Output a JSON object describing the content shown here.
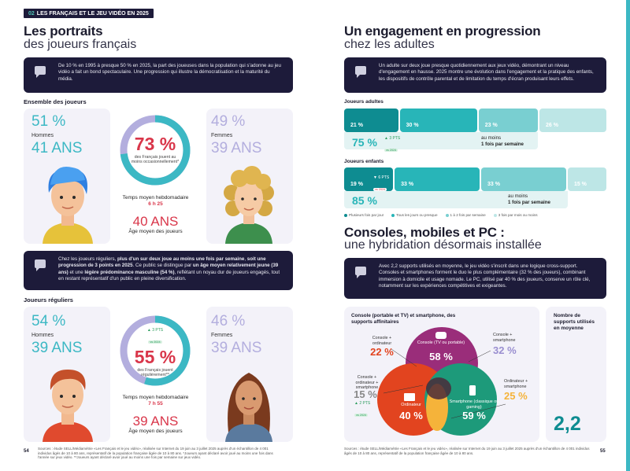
{
  "header": {
    "tag_num": "02",
    "tag_text": "LES FRANÇAIS ET LE JEU VIDÉO EN 2025"
  },
  "left": {
    "title_bold": "Les portraits",
    "title_light": "des joueurs français",
    "intro": "De 10 % en 1995 à presque 50 % en 2025, la part des joueuses dans la population qui s'adonne au jeu vidéo a fait un bond spectaculaire. Une progression qui illustre la démocratisation et la maturité du média.",
    "all": {
      "label": "Ensemble des joueurs",
      "men_pct": "51 %",
      "men_label": "Hommes",
      "men_age": "41 ANS",
      "women_pct": "49 %",
      "women_label": "Femmes",
      "women_age": "39 ANS",
      "donut_value": 73,
      "donut_pct": "73 %",
      "donut_sub": "des Français jouent au moins occasionnellement*",
      "time_label": "Temps moyen hebdomadaire",
      "time_value": "6 h 25",
      "avg_age": "40 ANS",
      "avg_age_label": "Âge moyen des joueurs"
    },
    "middle_note_html": "Chez les joueurs réguliers, <b>plus d'un sur deux joue au moins une fois par semaine</b>, <b>soit une progression de 3 points en 2025</b>. Ce public se distingue par <b>un âge moyen relativement jeune (39 ans)</b> et une <b>légère prédominance masculine (54 %)</b>, reflétant un noyau dur de joueurs engagés, tout en restant représentatif d'un public en pleine diversification.",
    "regular": {
      "label": "Joueurs réguliers",
      "men_pct": "54 %",
      "men_label": "Hommes",
      "men_age": "39 ANS",
      "women_pct": "46 %",
      "women_label": "Femmes",
      "women_age": "39 ANS",
      "delta": "▲ 3 PTS",
      "delta_tag": "vs 2024",
      "donut_value": 55,
      "donut_pct": "55 %",
      "donut_sub": "des Français jouent régulièrement**",
      "time_label": "Temps moyen hebdomadaire",
      "time_value": "7 h 55",
      "avg_age": "39 ANS",
      "avg_age_label": "Âge moyen des joueurs"
    },
    "page_num": "54",
    "footer": "Sources : étude SELL/Médiamétrie «Les Français et le jeu vidéo», réalisée sur Internet du 19 juin au 3 juillet 2025 auprès d'un échantillon de 4 001 individus âgés de 10 à 80 ans, représentatif de la population française âgée de 10 à 80 ans. *Joueurs ayant déclaré avoir joué au moins une fois dans l'année sur jeux vidéo. **Joueurs ayant déclaré avoir joué au moins une fois par semaine sur jeux vidéo."
  },
  "right": {
    "title_bold": "Un engagement en progression",
    "title_light": "chez les adultes",
    "intro": "Un adulte sur deux joue presque quotidiennement aux jeux vidéo, démontrant un niveau d'engagement en hausse. 2025 montre une évolution dans l'engagement et la pratique des enfants, les dispositifs de contrôle parental et de limitation du temps d'écran produisant leurs effets.",
    "adults": {
      "label": "Joueurs adultes",
      "segments": [
        {
          "label": "21 %",
          "value": 21
        },
        {
          "label": "30 %",
          "value": 30
        },
        {
          "label": "23 %",
          "value": 23
        },
        {
          "label": "26 %",
          "value": 26
        }
      ],
      "total": "75 %",
      "delta": "▲ 3 PTS",
      "delta_tag": "vs 2024",
      "caption_1": "au moins",
      "caption_2": "1 fois par semaine"
    },
    "kids": {
      "label": "Joueurs enfants",
      "segments": [
        {
          "label": "19 %",
          "value": 19
        },
        {
          "label": "33 %",
          "value": 33
        },
        {
          "label": "33 %",
          "value": 33
        },
        {
          "label": "15 %",
          "value": 15
        }
      ],
      "total": "85 %",
      "delta": "▼ 6 PTS",
      "delta_tag": "vs 2024",
      "caption_1": "au moins",
      "caption_2": "1 fois par semaine"
    },
    "legend": [
      {
        "label": "Plusieurs fois par jour",
        "color": "#0e8c91"
      },
      {
        "label": "Tous les jours ou presque",
        "color": "#28b5b8"
      },
      {
        "label": "1 à 2 fois par semaine",
        "color": "#79cfd1"
      },
      {
        "label": "3 fois par mois ou moins",
        "color": "#bde6e6"
      }
    ],
    "title2_bold": "Consoles, mobiles et PC :",
    "title2_light": "une hybridation désormais installée",
    "intro2": "Avec 2,2 supports utilisés en moyenne, le jeu vidéo s'inscrit dans une logique cross-support. Consoles et smartphones forment le duo le plus complémentaire (32 % des joueurs), combinant immersion à domicile et usage nomade. Le PC, utilisé par 40 % des joueurs, conserve un rôle clé, notamment sur les expériences compétitives et exigeantes.",
    "venn": {
      "title": "Console (portable et TV) et smartphone, des supports affinitaires",
      "console_label": "Console (TV ou portable)",
      "console_pct": "58 %",
      "pc_label": "Ordinateur",
      "pc_pct": "40 %",
      "phone_label": "Smartphone (classique ou gaming)",
      "phone_pct": "59 %",
      "cp_label": "Console + ordinateur",
      "cp_pct": "22 %",
      "cs_label": "Console + smartphone",
      "cs_pct": "32 %",
      "all_label": "Console + ordinateur + smartphone",
      "all_pct": "15 %",
      "all_delta": "▲ 2 PTS",
      "all_delta_tag": "vs 2024",
      "ps_label": "Ordinateur + smartphone",
      "ps_pct": "25 %"
    },
    "avg_supports_label": "Nombre de supports utilisés en moyenne",
    "avg_supports_value": "2,2",
    "page_num": "55",
    "footer": "Sources : étude SELL/Médiamétrie «Les Français et le jeu vidéo», réalisée sur Internet du 19 juin au 3 juillet 2025 auprès d'un échantillon de 4 001 individus âgés de 10 à 80 ans, représentatif de la population française âgée de 10 à 80 ans."
  },
  "colors": {
    "navy": "#1d1b3a",
    "teal": "#3cb8c4",
    "lavender": "#b3aede",
    "red": "#d9364a"
  }
}
